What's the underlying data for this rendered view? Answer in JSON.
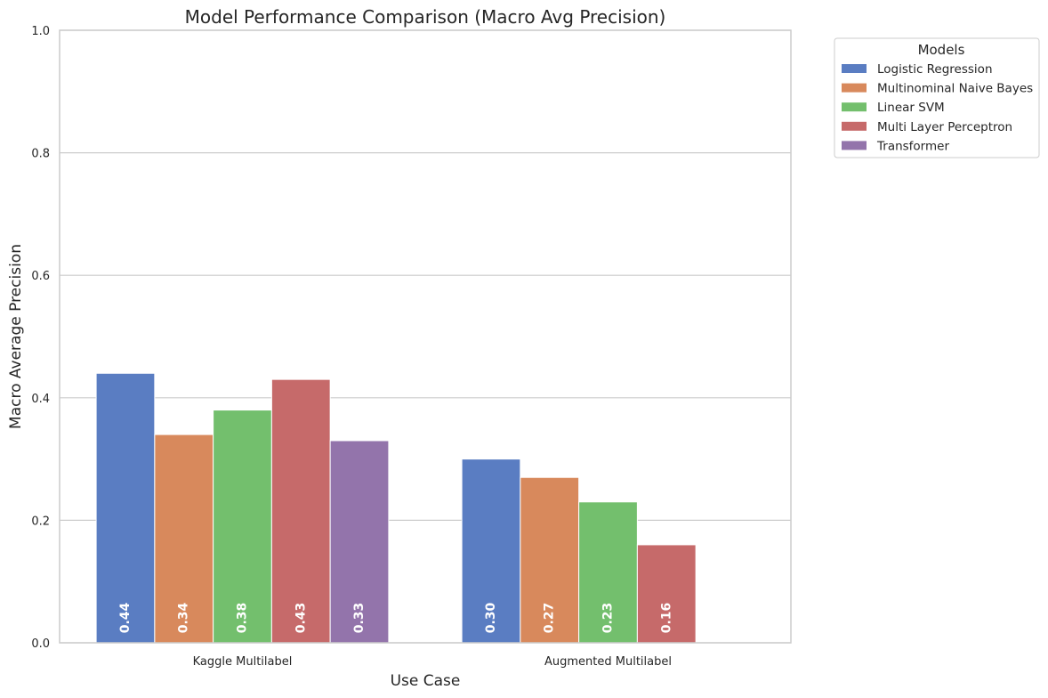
{
  "chart_data": {
    "type": "bar",
    "title": "Model Performance Comparison (Macro Avg Precision)",
    "xlabel": "Use Case",
    "ylabel": "Macro Average Precision",
    "ylim": [
      0,
      1
    ],
    "yticks": [
      "0.0",
      "0.2",
      "0.4",
      "0.6",
      "0.8",
      "1.0"
    ],
    "grid": "horizontal",
    "categories": [
      "Kaggle Multilabel",
      "Augmented Multilabel"
    ],
    "legend": {
      "title": "Models",
      "placement": "outside-top-right"
    },
    "series": [
      {
        "name": "Logistic Regression",
        "color": "#5a7dc2",
        "values": [
          0.44,
          0.3
        ],
        "labels": [
          "0.44",
          "0.30"
        ]
      },
      {
        "name": "Multinominal Naive Bayes",
        "color": "#d8895c",
        "values": [
          0.34,
          0.27
        ],
        "labels": [
          "0.34",
          "0.27"
        ]
      },
      {
        "name": "Linear SVM",
        "color": "#73bf6d",
        "values": [
          0.38,
          0.23
        ],
        "labels": [
          "0.38",
          "0.23"
        ]
      },
      {
        "name": "Multi Layer Perceptron",
        "color": "#c66a6a",
        "values": [
          0.43,
          0.16
        ],
        "labels": [
          "0.43",
          "0.16"
        ]
      },
      {
        "name": "Transformer",
        "color": "#9374ab",
        "values": [
          0.33,
          null
        ],
        "labels": [
          "0.33",
          ""
        ]
      }
    ]
  }
}
